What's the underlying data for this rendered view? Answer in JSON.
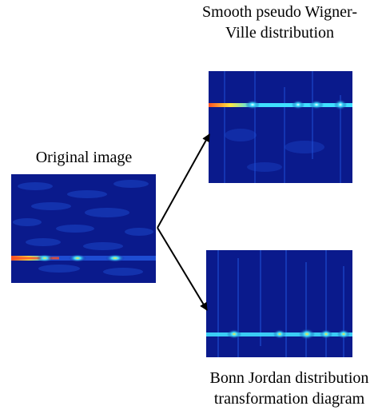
{
  "labels": {
    "spwvd": [
      "Smooth pseudo Wigner-",
      "Ville distribution"
    ],
    "original": "Original image",
    "bonn_jordan": [
      "Bonn Jordan distribution",
      "transformation diagram"
    ]
  },
  "colors": {
    "background_deep_blue": "#0a1a8c",
    "texture_blue": "#1f4fd6",
    "ridge_cyan": "#3fe0ff",
    "ridge_yellow": "#ffe840",
    "ridge_red": "#ff5020",
    "arrow": "#000000"
  }
}
